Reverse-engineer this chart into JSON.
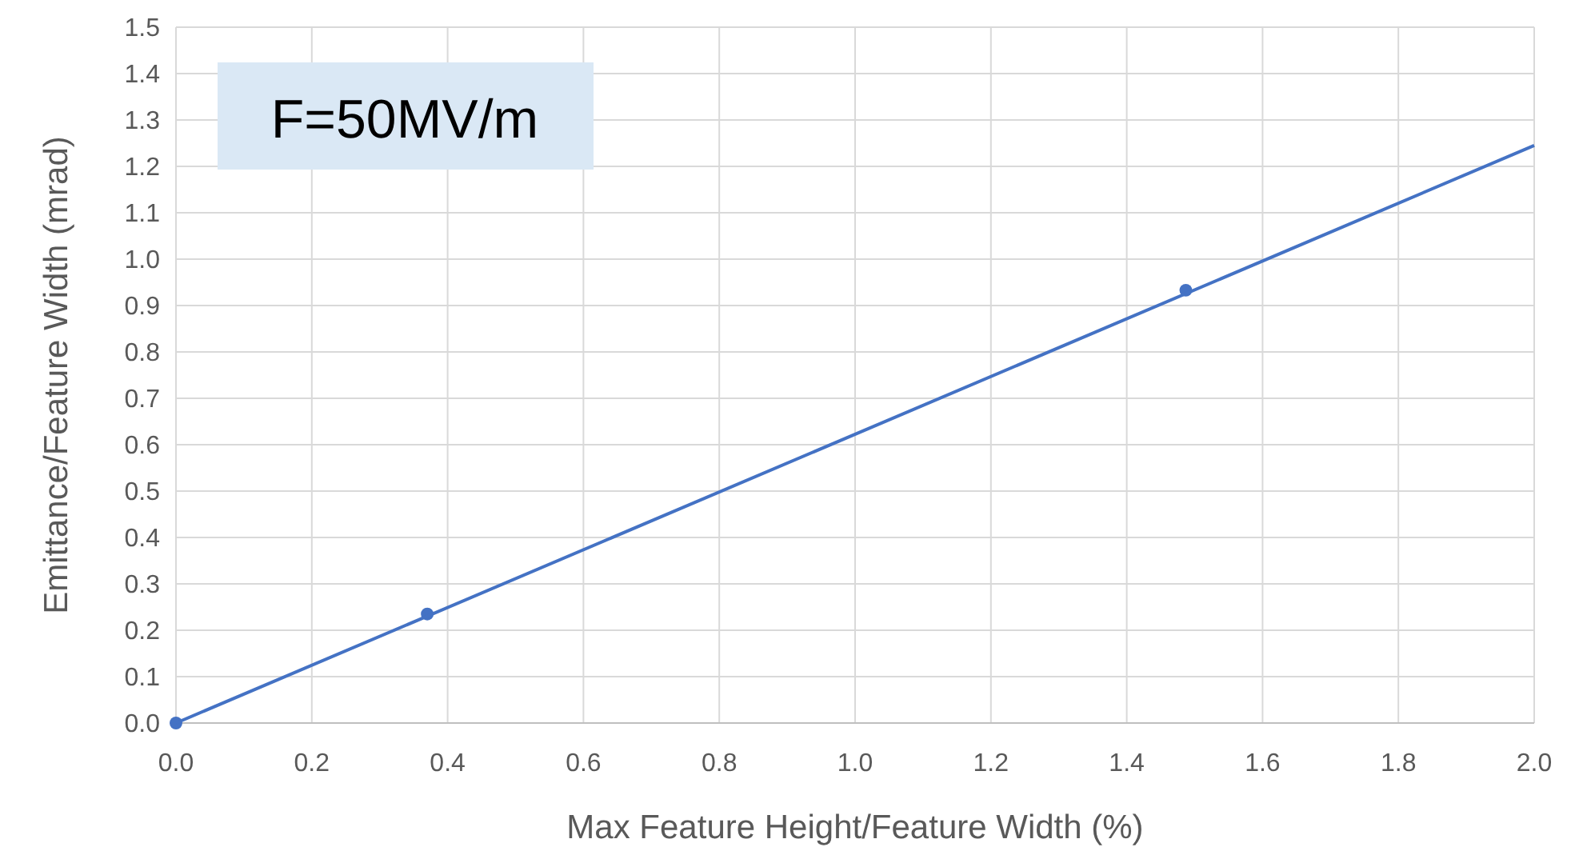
{
  "chart_data": {
    "type": "scatter",
    "xlabel": "Max Feature Height/Feature Width (%)",
    "ylabel": "Emittance/Feature Width (mrad)",
    "annotations": [
      "F=50MV/m"
    ],
    "xlim": [
      0,
      2
    ],
    "ylim": [
      0,
      1.5
    ],
    "xticks": [
      {
        "value": 0,
        "label": "0.0"
      },
      {
        "value": 0.2,
        "label": "0.2"
      },
      {
        "value": 0.4,
        "label": "0.4"
      },
      {
        "value": 0.6,
        "label": "0.6"
      },
      {
        "value": 0.8,
        "label": "0.8"
      },
      {
        "value": 1,
        "label": "1.0"
      },
      {
        "value": 1.2,
        "label": "1.2"
      },
      {
        "value": 1.4,
        "label": "1.4"
      },
      {
        "value": 1.6,
        "label": "1.6"
      },
      {
        "value": 1.8,
        "label": "1.8"
      },
      {
        "value": 2,
        "label": "2.0"
      }
    ],
    "yticks": [
      {
        "value": 0,
        "label": "0.0"
      },
      {
        "value": 0.1,
        "label": "0.1"
      },
      {
        "value": 0.2,
        "label": "0.2"
      },
      {
        "value": 0.3,
        "label": "0.3"
      },
      {
        "value": 0.4,
        "label": "0.4"
      },
      {
        "value": 0.5,
        "label": "0.5"
      },
      {
        "value": 0.6,
        "label": "0.6"
      },
      {
        "value": 0.7,
        "label": "0.7"
      },
      {
        "value": 0.8,
        "label": "0.8"
      },
      {
        "value": 0.9,
        "label": "0.9"
      },
      {
        "value": 1,
        "label": "1.0"
      },
      {
        "value": 1.1,
        "label": "1.1"
      },
      {
        "value": 1.2,
        "label": "1.2"
      },
      {
        "value": 1.3,
        "label": "1.3"
      },
      {
        "value": 1.4,
        "label": "1.4"
      },
      {
        "value": 1.5,
        "label": "1.5"
      }
    ],
    "grid": true,
    "marker": "circle",
    "series": [
      {
        "color": "#4472c4",
        "x": [
          0,
          0.37,
          1.487
        ],
        "values": [
          0,
          0.235,
          0.933
        ]
      },
      {
        "type": "line",
        "color": "#4472c4",
        "x": [
          0,
          2
        ],
        "values": [
          0,
          1.245
        ],
        "marker": "none"
      }
    ]
  }
}
